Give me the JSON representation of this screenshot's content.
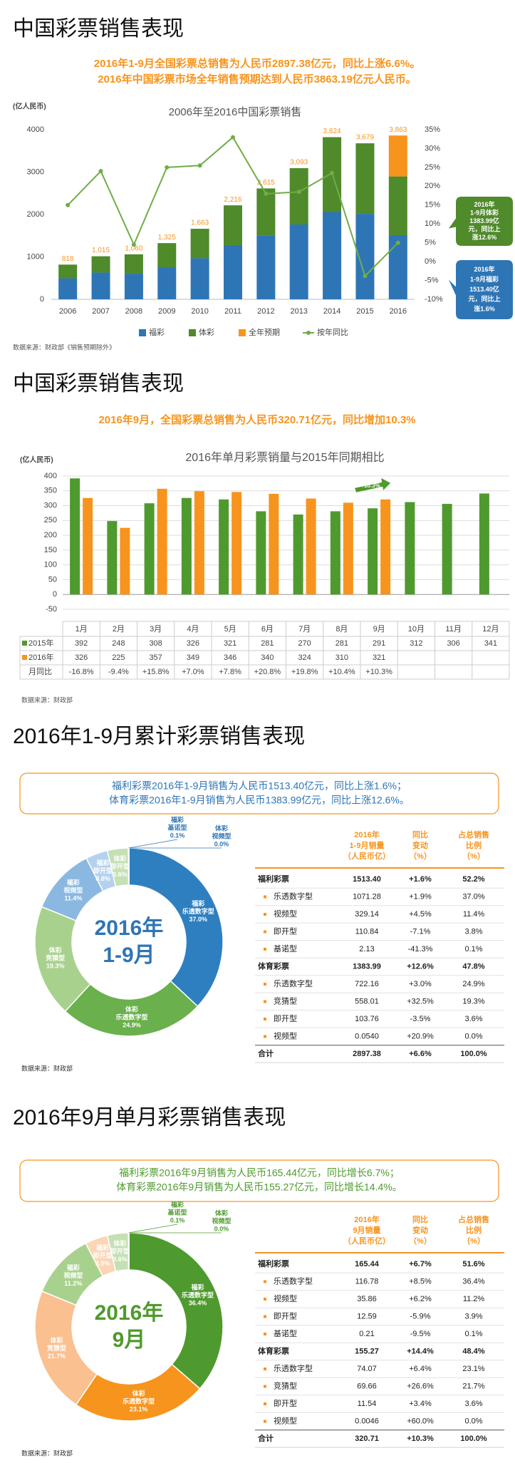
{
  "sections": [
    {
      "title": "中国彩票销售表现",
      "subtitle": [
        "2016年1-9月全国彩票总销售为人民币2897.38亿元，同比上涨6.6%。",
        "2016年中国彩票市场全年销售预期达到人民币3863.19亿元人民币。"
      ]
    },
    {
      "title": "中国彩票销售表现",
      "subtitle": [
        "2016年9月，全国彩票总销售为人民币320.71亿元，同比增加10.3%"
      ]
    },
    {
      "title": "2016年1-9月累计彩票销售表现",
      "summary": [
        "福利彩票2016年1-9月销售为人民币1513.40亿元，同比上涨1.6%；",
        "体育彩票2016年1-9月销售为人民币1383.99亿元，同比上涨12.6%。"
      ]
    },
    {
      "title": "2016年9月单月彩票销售表现",
      "summary": [
        "福利彩票2016年9月销售为人民币165.44亿元，同比增长6.7%；",
        "体育彩票2016年9月销售为人民币155.27亿元，同比增长14.4%。"
      ]
    }
  ],
  "chart_data": [
    {
      "type": "bar",
      "stacked": true,
      "title": "2006年至2016中国彩票销售",
      "ylabel": "(亿人民币)",
      "source": "数据来源：财政部《销售预期除外》",
      "categories": [
        "2006",
        "2007",
        "2008",
        "2009",
        "2010",
        "2011",
        "2012",
        "2013",
        "2014",
        "2015",
        "2016"
      ],
      "series": [
        {
          "name": "福彩",
          "color": "#2e75b6",
          "values": [
            495,
            631,
            604,
            756,
            968,
            1278,
            1510,
            1765,
            2059,
            2015,
            1513.4
          ]
        },
        {
          "name": "体彩",
          "color": "#4f8a2b",
          "values": [
            323,
            384,
            456,
            569,
            695,
            938,
            1105,
            1328,
            1765,
            1664,
            1383.99
          ]
        },
        {
          "name": "全年预期",
          "color": "#f7941d",
          "values": [
            null,
            null,
            null,
            null,
            null,
            null,
            null,
            null,
            null,
            null,
            965.81
          ]
        },
        {
          "name": "按年同比",
          "color": "#70ad47",
          "type": "line",
          "axis": "y2",
          "values": [
            15,
            24,
            4.5,
            25,
            25.5,
            33,
            18,
            18.5,
            23.5,
            -3.8,
            5
          ]
        }
      ],
      "total_labels": [
        "818",
        "1,015",
        "1,060",
        "1,325",
        "1,663",
        "2,216",
        "2,615",
        "3,093",
        "3,824",
        "3,679",
        "3,863"
      ],
      "ylim": [
        0,
        4000
      ],
      "yticks": [
        0,
        1000,
        2000,
        3000,
        4000
      ],
      "y2lim": [
        -10,
        35
      ],
      "y2ticks": [
        {
          "value": -10,
          "label": "-10%"
        },
        {
          "value": -5,
          "label": "-5%"
        },
        {
          "value": 0,
          "label": "0%"
        },
        {
          "value": 5,
          "label": "5%"
        },
        {
          "value": 10,
          "label": "10%"
        },
        {
          "value": 15,
          "label": "15%"
        },
        {
          "value": 20,
          "label": "20%"
        },
        {
          "value": 25,
          "label": "25%"
        },
        {
          "value": 30,
          "label": "30%"
        },
        {
          "value": 35,
          "label": "35%"
        }
      ],
      "callouts": [
        {
          "color": "#4f8a2b",
          "lines": [
            "2016年",
            "1-9月体彩",
            "1383.99亿",
            "元，同比上",
            "涨12.6%"
          ]
        },
        {
          "color": "#2e75b6",
          "lines": [
            "2016年",
            "1-9月福彩",
            "1513.40亿",
            "元，同比上",
            "涨1.6%"
          ]
        }
      ],
      "legend": "bottom"
    },
    {
      "type": "bar",
      "title": "2016年单月彩票销量与2015年同期相比",
      "ylabel": "(亿人民币)",
      "source": "数据来源：财政部",
      "categories": [
        "1月",
        "2月",
        "3月",
        "4月",
        "5月",
        "6月",
        "7月",
        "8月",
        "9月",
        "10月",
        "11月",
        "12月"
      ],
      "series": [
        {
          "name": "2015年",
          "color": "#4f9a2e",
          "values": [
            392,
            248,
            308,
            326,
            321,
            281,
            270,
            281,
            291,
            312,
            306,
            341
          ]
        },
        {
          "name": "2016年",
          "color": "#f7941d",
          "values": [
            326,
            225,
            357,
            349,
            346,
            340,
            324,
            310,
            321,
            null,
            null,
            null
          ]
        }
      ],
      "change_label": "月同比",
      "change": [
        "-16.8%",
        "-9.4%",
        "+15.8%",
        "+7.0%",
        "+7.8%",
        "+20.8%",
        "+19.8%",
        "+10.4%",
        "+10.3%"
      ],
      "annotation": "+10.3%",
      "ylim": [
        -50,
        400
      ],
      "yticks": [
        -50,
        0,
        50,
        100,
        150,
        200,
        250,
        300,
        350,
        400
      ],
      "grid": true
    },
    {
      "type": "pie",
      "donut": true,
      "center": [
        "2016年",
        "1-9月"
      ],
      "center_color": "#2e75b6",
      "source": "数据来源：财政部",
      "slices": [
        {
          "group": "福彩",
          "name": "乐透数字型",
          "value": 37.0,
          "value_label": "37.0%",
          "color": "#2e7fc0"
        },
        {
          "group": "体彩",
          "name": "乐透数字型",
          "value": 24.9,
          "value_label": "24.9%",
          "color": "#6ab04c"
        },
        {
          "group": "体彩",
          "name": "竞猜型",
          "value": 19.3,
          "value_label": "19.3%",
          "color": "#a9d18e"
        },
        {
          "group": "福彩",
          "name": "视频型",
          "value": 11.4,
          "value_label": "11.4%",
          "color": "#8ab8e0"
        },
        {
          "group": "福彩",
          "name": "即开型",
          "value": 3.8,
          "value_label": "3.8%",
          "color": "#b4d2ee"
        },
        {
          "group": "体彩",
          "name": "即开型",
          "value": 3.6,
          "value_label": "3.6%",
          "color": "#c5e0b4"
        },
        {
          "group": "福彩",
          "name": "基诺型",
          "value": 0.1,
          "value_label": "0.1%",
          "color": "#2e7fc0"
        },
        {
          "group": "体彩",
          "name": "视频型",
          "value": 0.0,
          "value_label": "0.0%",
          "color": "#6ab04c"
        }
      ]
    },
    {
      "type": "pie",
      "donut": true,
      "center": [
        "2016年",
        "9月"
      ],
      "center_color": "#4f9a2e",
      "source": "数据来源：财政部",
      "slices": [
        {
          "group": "福彩",
          "name": "乐透数字型",
          "value": 36.4,
          "value_label": "36.4%",
          "color": "#4f9a2e"
        },
        {
          "group": "体彩",
          "name": "乐透数字型",
          "value": 23.1,
          "value_label": "23.1%",
          "color": "#f7941d"
        },
        {
          "group": "体彩",
          "name": "竞猜型",
          "value": 21.7,
          "value_label": "21.7%",
          "color": "#fac08f"
        },
        {
          "group": "福彩",
          "name": "视频型",
          "value": 11.2,
          "value_label": "11.2%",
          "color": "#a9d18e"
        },
        {
          "group": "福彩",
          "name": "即开型",
          "value": 3.9,
          "value_label": "3.9%",
          "color": "#fbd5b5"
        },
        {
          "group": "体彩",
          "name": "即开型",
          "value": 3.6,
          "value_label": "3.6%",
          "color": "#c5e0b4"
        },
        {
          "group": "福彩",
          "name": "基诺型",
          "value": 0.1,
          "value_label": "0.1%",
          "color": "#4f9a2e"
        },
        {
          "group": "体彩",
          "name": "视频型",
          "value": 0.0,
          "value_label": "0.0%",
          "color": "#f7941d"
        }
      ]
    }
  ],
  "tables": [
    {
      "header": [
        [
          "2016年",
          "1-9月销量",
          "（人民币亿）"
        ],
        [
          "同比",
          "变动",
          "（%）"
        ],
        [
          "占总销售",
          "比例",
          "（%）"
        ]
      ],
      "rows": [
        {
          "bold": true,
          "cells": [
            "福利彩票",
            "1513.40",
            "+1.6%",
            "52.2%"
          ]
        },
        {
          "cells": [
            "乐透数字型",
            "1071.28",
            "+1.9%",
            "37.0%"
          ]
        },
        {
          "cells": [
            "视频型",
            "329.14",
            "+4.5%",
            "11.4%"
          ]
        },
        {
          "cells": [
            "即开型",
            "110.84",
            "-7.1%",
            "3.8%"
          ]
        },
        {
          "cells": [
            "基诺型",
            "2.13",
            "-41.3%",
            "0.1%"
          ]
        },
        {
          "bold": true,
          "cells": [
            "体育彩票",
            "1383.99",
            "+12.6%",
            "47.8%"
          ]
        },
        {
          "cells": [
            "乐透数字型",
            "722.16",
            "+3.0%",
            "24.9%"
          ]
        },
        {
          "cells": [
            "竞猜型",
            "558.01",
            "+32.5%",
            "19.3%"
          ]
        },
        {
          "cells": [
            "即开型",
            "103.76",
            "-3.5%",
            "3.6%"
          ]
        },
        {
          "cells": [
            "视频型",
            "0.0540",
            "+20.9%",
            "0.0%"
          ]
        },
        {
          "bold": true,
          "cells": [
            "合计",
            "2897.38",
            "+6.6%",
            "100.0%"
          ]
        }
      ]
    },
    {
      "header": [
        [
          "2016年",
          "9月销量",
          "（人民币亿）"
        ],
        [
          "同比",
          "变动",
          "（%）"
        ],
        [
          "占总销售",
          "比例",
          "（%）"
        ]
      ],
      "rows": [
        {
          "bold": true,
          "cells": [
            "福利彩票",
            "165.44",
            "+6.7%",
            "51.6%"
          ]
        },
        {
          "cells": [
            "乐透数字型",
            "116.78",
            "+8.5%",
            "36.4%"
          ]
        },
        {
          "cells": [
            "视频型",
            "35.86",
            "+6.2%",
            "11.2%"
          ]
        },
        {
          "cells": [
            "即开型",
            "12.59",
            "-5.9%",
            "3.9%"
          ]
        },
        {
          "cells": [
            "基诺型",
            "0.21",
            "-9.5%",
            "0.1%"
          ]
        },
        {
          "bold": true,
          "cells": [
            "体育彩票",
            "155.27",
            "+14.4%",
            "48.4%"
          ]
        },
        {
          "cells": [
            "乐透数字型",
            "74.07",
            "+6.4%",
            "23.1%"
          ]
        },
        {
          "cells": [
            "竞猜型",
            "69.66",
            "+26.6%",
            "21.7%"
          ]
        },
        {
          "cells": [
            "即开型",
            "11.54",
            "+3.4%",
            "3.6%"
          ]
        },
        {
          "cells": [
            "视频型",
            "0.0046",
            "+60.0%",
            "0.0%"
          ]
        },
        {
          "bold": true,
          "cells": [
            "合计",
            "320.71",
            "+10.3%",
            "100.0%"
          ]
        }
      ]
    }
  ]
}
